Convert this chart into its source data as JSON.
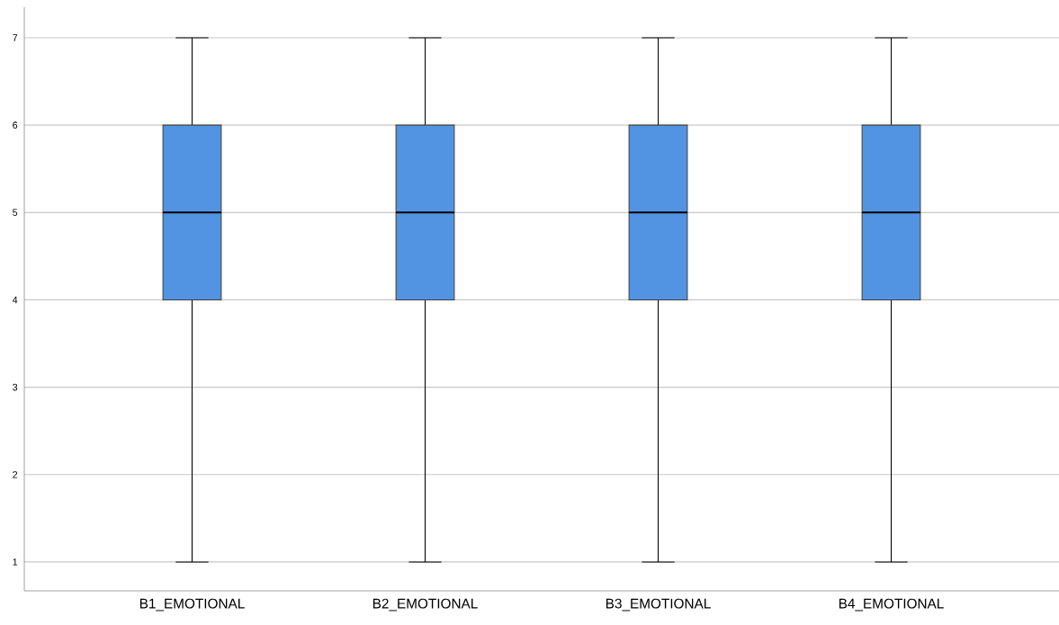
{
  "chart_data": {
    "type": "box",
    "categories": [
      "B1_EMOTIONAL",
      "B2_EMOTIONAL",
      "B3_EMOTIONAL",
      "B4_EMOTIONAL"
    ],
    "boxes": [
      {
        "low": 1,
        "q1": 4,
        "median": 5,
        "q3": 6,
        "high": 7
      },
      {
        "low": 1,
        "q1": 4,
        "median": 5,
        "q3": 6,
        "high": 7
      },
      {
        "low": 1,
        "q1": 4,
        "median": 5,
        "q3": 6,
        "high": 7
      },
      {
        "low": 1,
        "q1": 4,
        "median": 5,
        "q3": 6,
        "high": 7
      }
    ],
    "color": "#5294e2",
    "ylim": [
      0.67,
      7.35
    ],
    "yticks": [
      1,
      2,
      3,
      4,
      5,
      6,
      7
    ],
    "grid": "y"
  }
}
